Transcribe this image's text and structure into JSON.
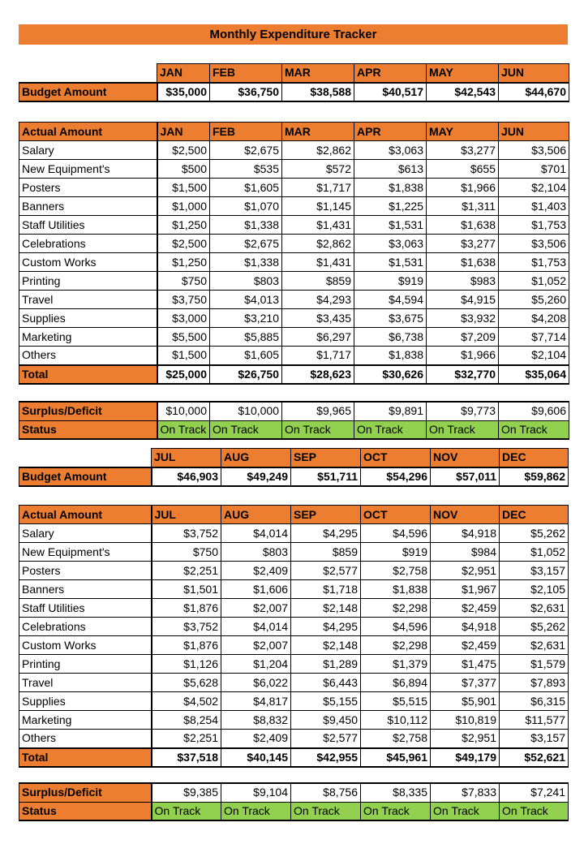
{
  "title": "Monthly Expenditure Tracker",
  "colors": {
    "header": "#ED7D31",
    "status_ok": "#92D050"
  },
  "half1": {
    "months": [
      "JAN",
      "FEB",
      "MAR",
      "APR",
      "MAY",
      "JUN"
    ],
    "budget_label": "Budget Amount",
    "budget": [
      "$35,000",
      "$36,750",
      "$38,588",
      "$40,517",
      "$42,543",
      "$44,670"
    ],
    "actual_label": "Actual Amount",
    "rows": [
      {
        "label": "Salary",
        "values": [
          "$2,500",
          "$2,675",
          "$2,862",
          "$3,063",
          "$3,277",
          "$3,506"
        ]
      },
      {
        "label": "New Equipment's",
        "values": [
          "$500",
          "$535",
          "$572",
          "$613",
          "$655",
          "$701"
        ]
      },
      {
        "label": "Posters",
        "values": [
          "$1,500",
          "$1,605",
          "$1,717",
          "$1,838",
          "$1,966",
          "$2,104"
        ]
      },
      {
        "label": "Banners",
        "values": [
          "$1,000",
          "$1,070",
          "$1,145",
          "$1,225",
          "$1,311",
          "$1,403"
        ]
      },
      {
        "label": "Staff Utilities",
        "values": [
          "$1,250",
          "$1,338",
          "$1,431",
          "$1,531",
          "$1,638",
          "$1,753"
        ]
      },
      {
        "label": "Celebrations",
        "values": [
          "$2,500",
          "$2,675",
          "$2,862",
          "$3,063",
          "$3,277",
          "$3,506"
        ]
      },
      {
        "label": "Custom Works",
        "values": [
          "$1,250",
          "$1,338",
          "$1,431",
          "$1,531",
          "$1,638",
          "$1,753"
        ]
      },
      {
        "label": "Printing",
        "values": [
          "$750",
          "$803",
          "$859",
          "$919",
          "$983",
          "$1,052"
        ]
      },
      {
        "label": "Travel",
        "values": [
          "$3,750",
          "$4,013",
          "$4,293",
          "$4,594",
          "$4,915",
          "$5,260"
        ]
      },
      {
        "label": "Supplies",
        "values": [
          "$3,000",
          "$3,210",
          "$3,435",
          "$3,675",
          "$3,932",
          "$4,208"
        ]
      },
      {
        "label": "Marketing",
        "values": [
          "$5,500",
          "$5,885",
          "$6,297",
          "$6,738",
          "$7,209",
          "$7,714"
        ]
      },
      {
        "label": "Others",
        "values": [
          "$1,500",
          "$1,605",
          "$1,717",
          "$1,838",
          "$1,966",
          "$2,104"
        ]
      }
    ],
    "total_label": "Total",
    "total": [
      "$25,000",
      "$26,750",
      "$28,623",
      "$30,626",
      "$32,770",
      "$35,064"
    ],
    "surplus_label": "Surplus/Deficit",
    "surplus": [
      "$10,000",
      "$10,000",
      "$9,965",
      "$9,891",
      "$9,773",
      "$9,606"
    ],
    "status_label": "Status",
    "status": [
      "On Track",
      "On Track",
      "On Track",
      "On Track",
      "On Track",
      "On Track"
    ]
  },
  "half2": {
    "months": [
      "JUL",
      "AUG",
      "SEP",
      "OCT",
      "NOV",
      "DEC"
    ],
    "budget_label": "Budget Amount",
    "budget": [
      "$46,903",
      "$49,249",
      "$51,711",
      "$54,296",
      "$57,011",
      "$59,862"
    ],
    "actual_label": "Actual Amount",
    "rows": [
      {
        "label": "Salary",
        "values": [
          "$3,752",
          "$4,014",
          "$4,295",
          "$4,596",
          "$4,918",
          "$5,262"
        ]
      },
      {
        "label": "New Equipment's",
        "values": [
          "$750",
          "$803",
          "$859",
          "$919",
          "$984",
          "$1,052"
        ]
      },
      {
        "label": "Posters",
        "values": [
          "$2,251",
          "$2,409",
          "$2,577",
          "$2,758",
          "$2,951",
          "$3,157"
        ]
      },
      {
        "label": "Banners",
        "values": [
          "$1,501",
          "$1,606",
          "$1,718",
          "$1,838",
          "$1,967",
          "$2,105"
        ]
      },
      {
        "label": "Staff Utilities",
        "values": [
          "$1,876",
          "$2,007",
          "$2,148",
          "$2,298",
          "$2,459",
          "$2,631"
        ]
      },
      {
        "label": "Celebrations",
        "values": [
          "$3,752",
          "$4,014",
          "$4,295",
          "$4,596",
          "$4,918",
          "$5,262"
        ]
      },
      {
        "label": "Custom Works",
        "values": [
          "$1,876",
          "$2,007",
          "$2,148",
          "$2,298",
          "$2,459",
          "$2,631"
        ]
      },
      {
        "label": "Printing",
        "values": [
          "$1,126",
          "$1,204",
          "$1,289",
          "$1,379",
          "$1,475",
          "$1,579"
        ]
      },
      {
        "label": "Travel",
        "values": [
          "$5,628",
          "$6,022",
          "$6,443",
          "$6,894",
          "$7,377",
          "$7,893"
        ]
      },
      {
        "label": "Supplies",
        "values": [
          "$4,502",
          "$4,817",
          "$5,155",
          "$5,515",
          "$5,901",
          "$6,315"
        ]
      },
      {
        "label": "Marketing",
        "values": [
          "$8,254",
          "$8,832",
          "$9,450",
          "$10,112",
          "$10,819",
          "$11,577"
        ]
      },
      {
        "label": "Others",
        "values": [
          "$2,251",
          "$2,409",
          "$2,577",
          "$2,758",
          "$2,951",
          "$3,157"
        ]
      }
    ],
    "total_label": "Total",
    "total": [
      "$37,518",
      "$40,145",
      "$42,955",
      "$45,961",
      "$49,179",
      "$52,621"
    ],
    "surplus_label": "Surplus/Deficit",
    "surplus": [
      "$9,385",
      "$9,104",
      "$8,756",
      "$8,335",
      "$7,833",
      "$7,241"
    ],
    "status_label": "Status",
    "status": [
      "On Track",
      "On Track",
      "On Track",
      "On Track",
      "On Track",
      "On Track"
    ]
  }
}
